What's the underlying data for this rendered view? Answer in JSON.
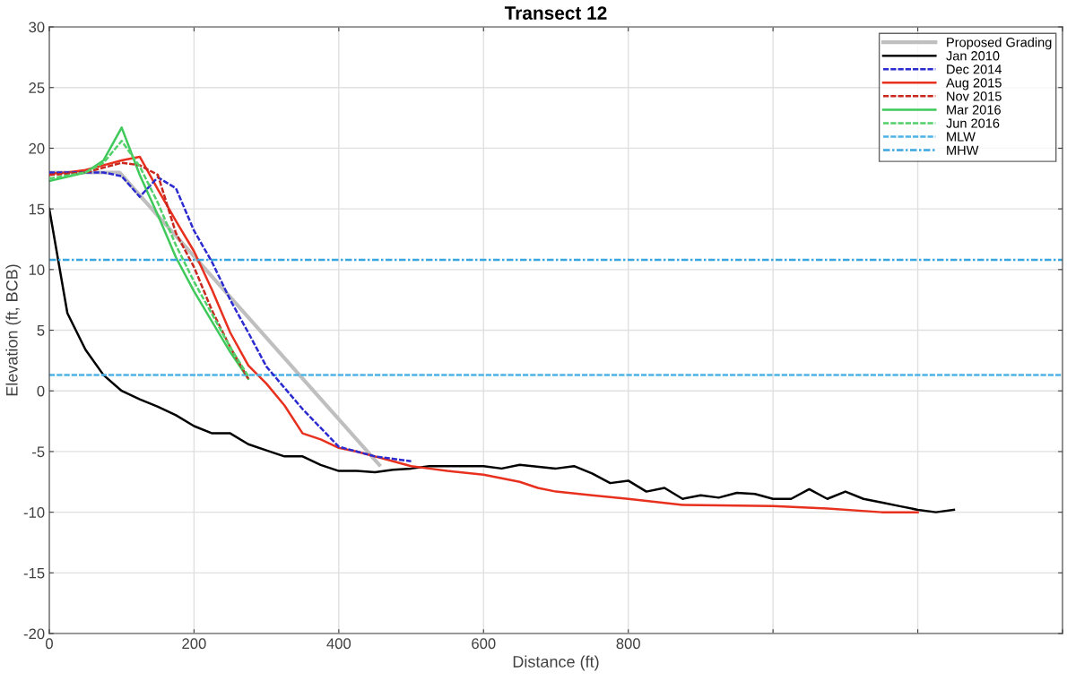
{
  "chart_data": {
    "type": "line",
    "title": "Transect 12",
    "xlabel": "Distance (ft)",
    "ylabel": "Elevation (ft, BCB)",
    "xlim": [
      0,
      1400
    ],
    "ylim": [
      -20,
      30
    ],
    "xticks": [
      0,
      200,
      400,
      600,
      800,
      {
        "value": 1000,
        "label": null
      },
      {
        "value": 1200,
        "label": null
      },
      {
        "value": 1400,
        "label": null
      }
    ],
    "yticks": [
      -20,
      -15,
      -10,
      -5,
      0,
      5,
      10,
      15,
      20,
      25,
      30
    ],
    "grid": true,
    "legend": "top right",
    "marker": "none",
    "series": [
      {
        "name": "Proposed Grading",
        "color": "#bfbfbf",
        "line_style": "solid",
        "x": [
          0,
          97,
          456
        ],
        "values": [
          18.0,
          18.0,
          -6.1
        ]
      },
      {
        "name": "Jan 2010",
        "color": "#000000",
        "line_style": "solid",
        "x": [
          0,
          25,
          50,
          75,
          100,
          125,
          150,
          175,
          200,
          225,
          250,
          275,
          300,
          325,
          350,
          375,
          400,
          425,
          450,
          475,
          500,
          525,
          550,
          575,
          600,
          625,
          650,
          700,
          725,
          750,
          775,
          800,
          825,
          850,
          875,
          900,
          925,
          950,
          975,
          1000,
          1025,
          1050,
          1075,
          1100,
          1125,
          1150,
          1175,
          1200,
          1225,
          1250
        ],
        "values": [
          15.0,
          6.4,
          3.4,
          1.3,
          0.0,
          -0.7,
          -1.3,
          -2.0,
          -2.9,
          -3.5,
          -3.5,
          -4.4,
          -4.9,
          -5.4,
          -5.4,
          -6.1,
          -6.6,
          -6.6,
          -6.7,
          -6.5,
          -6.4,
          -6.2,
          -6.2,
          -6.2,
          -6.2,
          -6.4,
          -6.1,
          -6.4,
          -6.2,
          -6.8,
          -7.6,
          -7.4,
          -8.3,
          -8.0,
          -8.9,
          -8.6,
          -8.8,
          -8.4,
          -8.5,
          -8.9,
          -8.9,
          -8.1,
          -8.9,
          -8.3,
          -8.9,
          -9.2,
          -9.5,
          -9.8,
          -10.0,
          -9.8
        ]
      },
      {
        "name": "Dec 2014",
        "color": "#2b2bd0",
        "line_style": "dashed",
        "x": [
          0,
          25,
          50,
          75,
          100,
          125,
          150,
          175,
          200,
          225,
          250,
          275,
          300,
          350,
          400,
          450,
          500
        ],
        "values": [
          18.0,
          18.0,
          18.0,
          18.0,
          17.7,
          16.0,
          17.6,
          16.7,
          13.2,
          10.6,
          7.5,
          4.8,
          2.0,
          -1.5,
          -4.6,
          -5.4,
          -5.8
        ]
      },
      {
        "name": "Aug 2015",
        "color": "#e8301e",
        "line_style": "solid",
        "x": [
          0,
          25,
          50,
          75,
          100,
          125,
          150,
          175,
          200,
          225,
          250,
          275,
          300,
          325,
          350,
          375,
          400,
          425,
          450,
          475,
          500,
          525,
          550,
          600,
          625,
          650,
          675,
          700,
          750,
          800,
          875,
          1000,
          1075,
          1150,
          1200
        ],
        "values": [
          17.9,
          18.0,
          18.2,
          18.6,
          19.0,
          19.3,
          16.6,
          14.0,
          11.5,
          8.3,
          4.8,
          2.1,
          0.6,
          -1.2,
          -3.5,
          -4.0,
          -4.7,
          -5.0,
          -5.4,
          -5.8,
          -6.2,
          -6.4,
          -6.6,
          -6.9,
          -7.2,
          -7.5,
          -8.0,
          -8.3,
          -8.6,
          -8.9,
          -9.4,
          -9.5,
          -9.7,
          -10.0,
          -10.0
        ]
      },
      {
        "name": "Nov 2015",
        "color": "#c8281e",
        "line_style": "dashed",
        "x": [
          0,
          50,
          100,
          125,
          150,
          175,
          200,
          225,
          250,
          275
        ],
        "values": [
          17.8,
          18.0,
          18.8,
          18.6,
          17.8,
          13.0,
          10.2,
          6.6,
          3.6,
          1.0
        ]
      },
      {
        "name": "Mar 2016",
        "color": "#3ec95a",
        "line_style": "solid",
        "x": [
          0,
          50,
          75,
          100,
          125,
          150,
          175,
          200,
          225,
          250,
          275
        ],
        "values": [
          17.3,
          18.0,
          19.0,
          21.7,
          17.8,
          14.5,
          11.0,
          8.2,
          5.7,
          3.2,
          1.0
        ]
      },
      {
        "name": "Jun 2016",
        "color": "#52d06a",
        "line_style": "dashed",
        "x": [
          0,
          50,
          75,
          100,
          125,
          150,
          175,
          200,
          225,
          250,
          275
        ],
        "values": [
          17.5,
          18.0,
          18.8,
          20.6,
          18.5,
          15.5,
          12.0,
          9.0,
          6.3,
          3.6,
          1.2
        ]
      }
    ],
    "ref_lines": [
      {
        "axis": "y",
        "value": 1.3,
        "label": "MLW",
        "color": "#4db3e6",
        "line_style": "dashed"
      },
      {
        "axis": "y",
        "value": 10.8,
        "label": "MHW",
        "color": "#3aa6e0",
        "line_style": "dotted"
      }
    ]
  }
}
